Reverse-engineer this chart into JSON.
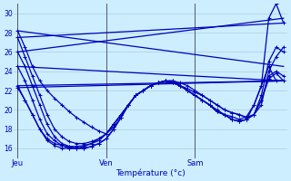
{
  "background_color": "#cceeff",
  "grid_color": "#aaccdd",
  "line_color": "#0000bb",
  "vline_color": "#555577",
  "xlabel": "Température (°c)",
  "ylim": [
    15,
    31
  ],
  "yticks": [
    16,
    18,
    20,
    22,
    24,
    26,
    28,
    30
  ],
  "day_labels": [
    "Jeu",
    "Ven",
    "Sam"
  ],
  "day_positions": [
    0,
    12,
    24
  ],
  "num_points": 37,
  "straight_lines": [
    [
      [
        0,
        28.2
      ],
      [
        36,
        24.5
      ]
    ],
    [
      [
        0,
        27.5
      ],
      [
        36,
        29.0
      ]
    ],
    [
      [
        0,
        26.0
      ],
      [
        36,
        29.5
      ]
    ],
    [
      [
        0,
        24.5
      ],
      [
        36,
        23.0
      ]
    ],
    [
      [
        0,
        22.5
      ],
      [
        36,
        23.0
      ]
    ],
    [
      [
        0,
        22.3
      ],
      [
        36,
        23.0
      ]
    ]
  ],
  "curved_series": [
    [
      28.2,
      26.5,
      24.5,
      23.0,
      22.0,
      21.2,
      20.5,
      19.8,
      19.2,
      18.7,
      18.2,
      17.8,
      17.5,
      18.2,
      19.2,
      20.5,
      21.5,
      22.0,
      22.5,
      22.8,
      23.0,
      22.8,
      22.5,
      22.0,
      21.5,
      21.0,
      20.5,
      20.0,
      19.5,
      19.3,
      19.0,
      19.3,
      20.5,
      22.5,
      24.5,
      23.0,
      23.0
    ],
    [
      27.5,
      25.5,
      23.5,
      21.5,
      19.5,
      18.0,
      17.2,
      16.7,
      16.5,
      16.5,
      16.7,
      17.0,
      17.5,
      18.5,
      19.5,
      20.5,
      21.5,
      22.0,
      22.5,
      22.8,
      23.0,
      23.0,
      22.5,
      22.0,
      21.5,
      21.0,
      20.5,
      19.8,
      19.5,
      19.0,
      18.8,
      19.0,
      20.5,
      22.5,
      29.5,
      31.0,
      29.0
    ],
    [
      26.0,
      24.5,
      22.5,
      20.5,
      18.5,
      17.2,
      16.5,
      16.2,
      16.0,
      16.0,
      16.2,
      16.5,
      17.0,
      18.0,
      19.2,
      20.5,
      21.5,
      22.0,
      22.5,
      22.8,
      23.0,
      22.8,
      22.5,
      22.0,
      21.5,
      21.0,
      20.5,
      19.8,
      19.5,
      19.0,
      18.8,
      19.0,
      19.5,
      21.0,
      23.2,
      23.8,
      23.0
    ],
    [
      24.5,
      23.0,
      21.0,
      19.0,
      17.5,
      16.8,
      16.3,
      16.0,
      16.0,
      16.0,
      16.2,
      16.5,
      17.0,
      18.0,
      19.2,
      20.5,
      21.5,
      22.0,
      22.5,
      22.8,
      23.0,
      22.8,
      22.5,
      22.0,
      21.5,
      21.0,
      20.5,
      19.8,
      19.5,
      19.0,
      18.8,
      19.0,
      19.5,
      21.0,
      23.5,
      24.0,
      23.5
    ],
    [
      22.5,
      21.0,
      19.5,
      18.0,
      16.8,
      16.3,
      16.0,
      16.0,
      16.0,
      16.2,
      16.5,
      17.0,
      17.5,
      18.5,
      19.5,
      20.5,
      21.5,
      22.0,
      22.5,
      22.8,
      23.0,
      22.8,
      22.5,
      22.2,
      21.8,
      21.5,
      21.0,
      20.5,
      20.0,
      19.7,
      19.5,
      19.2,
      19.5,
      21.5,
      25.0,
      26.5,
      26.0
    ],
    [
      22.3,
      21.0,
      19.5,
      18.0,
      17.0,
      16.5,
      16.3,
      16.2,
      16.2,
      16.3,
      16.5,
      16.8,
      17.5,
      18.5,
      19.5,
      20.5,
      21.5,
      22.0,
      22.5,
      22.8,
      23.0,
      23.0,
      22.8,
      22.5,
      22.0,
      21.5,
      21.0,
      20.5,
      20.0,
      19.7,
      19.5,
      19.2,
      19.5,
      20.5,
      24.0,
      25.5,
      26.5
    ]
  ]
}
